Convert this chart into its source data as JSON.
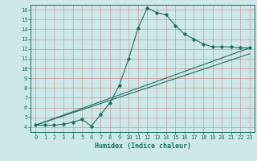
{
  "xlabel": "Humidex (Indice chaleur)",
  "ylabel": "",
  "bg_color": "#cde8e8",
  "grid_color": "#b0b0b0",
  "line_color": "#1a7060",
  "xlim": [
    -0.5,
    23.5
  ],
  "ylim": [
    3.5,
    16.5
  ],
  "xticks": [
    0,
    1,
    2,
    3,
    4,
    5,
    6,
    7,
    8,
    9,
    10,
    11,
    12,
    13,
    14,
    15,
    16,
    17,
    18,
    19,
    20,
    21,
    22,
    23
  ],
  "yticks": [
    4,
    5,
    6,
    7,
    8,
    9,
    10,
    11,
    12,
    13,
    14,
    15,
    16
  ],
  "line1_x": [
    0,
    1,
    2,
    3,
    4,
    5,
    6,
    7,
    8,
    9,
    10,
    11,
    12,
    13,
    14,
    15,
    16,
    17,
    18,
    19,
    20,
    21,
    22,
    23
  ],
  "line1_y": [
    4.2,
    4.2,
    4.2,
    4.3,
    4.5,
    4.8,
    4.1,
    5.3,
    6.5,
    8.3,
    11.0,
    14.1,
    16.2,
    15.7,
    15.5,
    14.4,
    13.5,
    13.0,
    12.5,
    12.2,
    12.2,
    12.2,
    12.1,
    12.1
  ],
  "line2_x": [
    0,
    23
  ],
  "line2_y": [
    4.2,
    12.1
  ],
  "line3_x": [
    0,
    23
  ],
  "line3_y": [
    4.2,
    11.5
  ]
}
